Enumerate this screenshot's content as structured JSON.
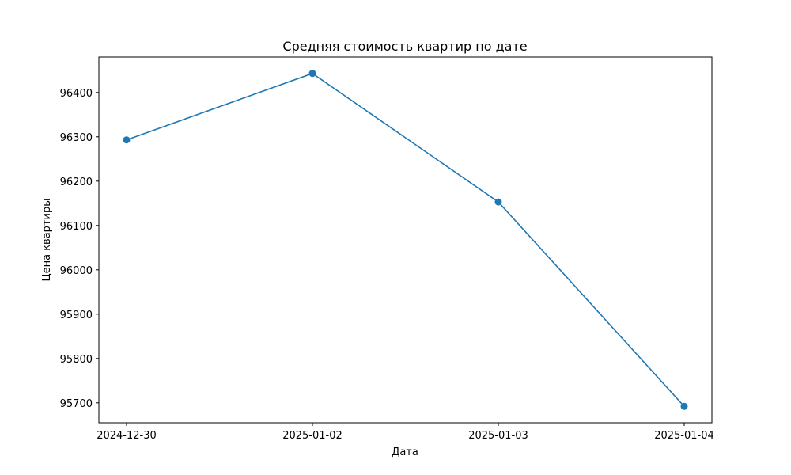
{
  "chart_data": {
    "type": "line",
    "title": "Средняя стоимость квартир по дате",
    "xlabel": "Дата",
    "ylabel": "Цена квартиры",
    "categories": [
      "2024-12-30",
      "2025-01-02",
      "2025-01-03",
      "2025-01-04"
    ],
    "series": [
      {
        "values": [
          96293,
          96443,
          96153,
          95692
        ],
        "color": "#1f77b4",
        "marker": "circle"
      }
    ],
    "ylim": [
      95655,
      96480
    ],
    "yticks": [
      95700,
      95800,
      95900,
      96000,
      96100,
      96200,
      96300,
      96400
    ],
    "grid": false,
    "legend": "none"
  }
}
